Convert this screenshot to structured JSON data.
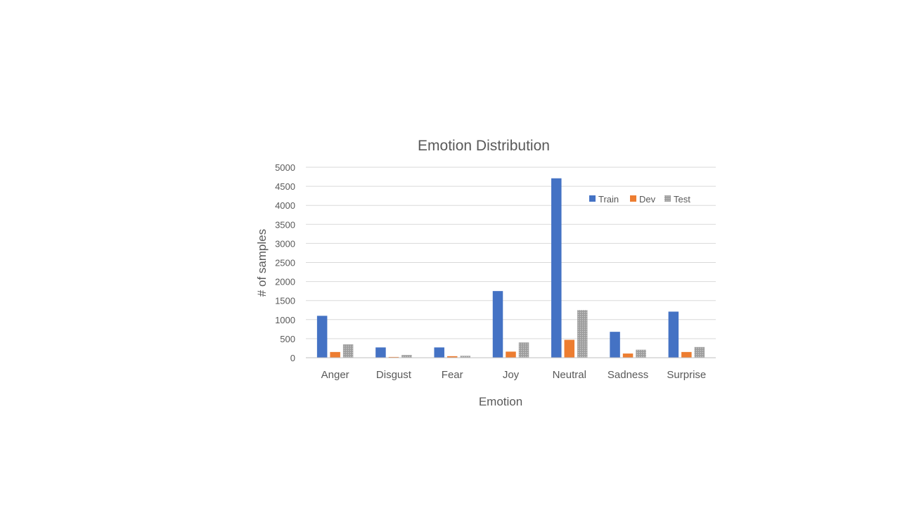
{
  "chart_data": {
    "type": "bar",
    "title": "Emotion Distribution",
    "xlabel": "Emotion",
    "ylabel": "# of samples",
    "ylim": [
      0,
      5000
    ],
    "yticks": [
      0,
      500,
      1000,
      1500,
      2000,
      2500,
      3000,
      3500,
      4000,
      4500,
      5000
    ],
    "grid": true,
    "legend": "top-right",
    "categories": [
      "Anger",
      "Disgust",
      "Fear",
      "Joy",
      "Neutral",
      "Sadness",
      "Surprise"
    ],
    "series": [
      {
        "name": "Train",
        "color": "#4472c4",
        "values": [
          1100,
          270,
          270,
          1750,
          4710,
          680,
          1210
        ]
      },
      {
        "name": "Dev",
        "color": "#ed7d31",
        "values": [
          150,
          20,
          40,
          160,
          470,
          110,
          150
        ]
      },
      {
        "name": "Test",
        "color": "#a5a5a5",
        "pattern": "dotted-gray",
        "values": [
          350,
          70,
          50,
          400,
          1250,
          210,
          280
        ]
      }
    ]
  }
}
